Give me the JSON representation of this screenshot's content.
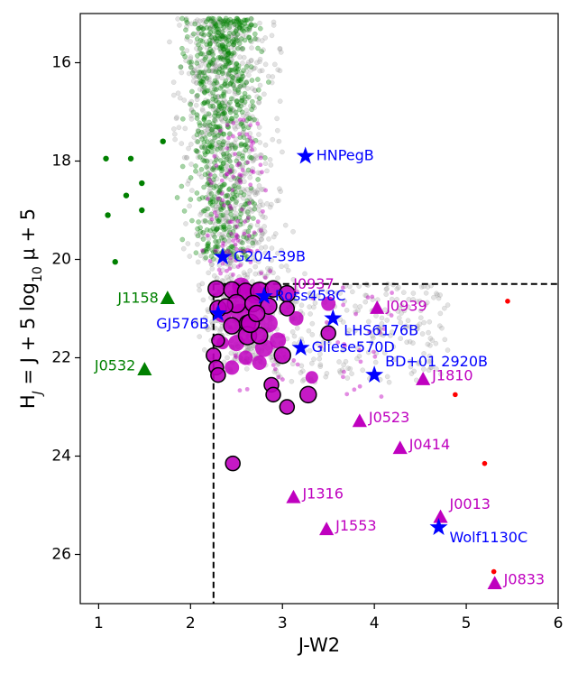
{
  "chart_data": {
    "type": "scatter",
    "title": "",
    "xlabel": "J-W2",
    "ylabel": "H_J = J + 5 log10 μ + 5",
    "xlim": [
      0.8,
      6.0
    ],
    "ylim": [
      27.0,
      15.0
    ],
    "y_inverted": true,
    "xticks": [
      1,
      2,
      3,
      4,
      5,
      6
    ],
    "yticks": [
      16,
      18,
      20,
      22,
      24,
      26
    ],
    "grid": false,
    "colors": {
      "green": "#008000",
      "blue": "#0000ff",
      "magenta": "#bf00bf",
      "red": "#ff0000",
      "gray": "#999999",
      "dark_outline": "#000000"
    },
    "selection_cuts": {
      "dashed_vertical_x": 2.25,
      "dashed_horizontal_y": 20.5,
      "vertical_from_y": 20.5,
      "vertical_to_y": 27.0,
      "horizontal_from_x": 2.25,
      "horizontal_to_x": 6.0
    },
    "field_clouds": [
      {
        "name": "gray field",
        "color": "#999999",
        "count": 1300,
        "x_range": [
          0.9,
          4.9
        ],
        "y_range": [
          15.1,
          22.5
        ]
      },
      {
        "name": "green field",
        "color": "#008000",
        "count": 650,
        "x_range": [
          1.5,
          3.6
        ],
        "y_range": [
          15.1,
          20.0
        ]
      },
      {
        "name": "magenta field",
        "color": "#bf00bf",
        "count": 170,
        "x_range": [
          1.8,
          4.4
        ],
        "y_range": [
          17.0,
          22.8
        ]
      }
    ],
    "green_dots": [
      {
        "x": 1.08,
        "y": 17.95
      },
      {
        "x": 1.35,
        "y": 17.95
      },
      {
        "x": 1.47,
        "y": 18.45
      },
      {
        "x": 1.3,
        "y": 18.7
      },
      {
        "x": 1.47,
        "y": 19.0
      },
      {
        "x": 1.1,
        "y": 19.1
      },
      {
        "x": 1.18,
        "y": 20.05
      },
      {
        "x": 1.7,
        "y": 17.6
      }
    ],
    "red_dots": [
      {
        "x": 4.88,
        "y": 22.75
      },
      {
        "x": 5.2,
        "y": 24.15
      },
      {
        "x": 5.3,
        "y": 26.35
      },
      {
        "x": 5.45,
        "y": 20.85
      }
    ],
    "candidates": [
      {
        "x": 2.28,
        "y": 20.6,
        "s": 9
      },
      {
        "x": 2.45,
        "y": 20.62,
        "s": 9
      },
      {
        "x": 2.6,
        "y": 20.65,
        "s": 9
      },
      {
        "x": 2.75,
        "y": 20.65,
        "s": 10
      },
      {
        "x": 2.9,
        "y": 20.6,
        "s": 9
      },
      {
        "x": 3.05,
        "y": 20.7,
        "s": 9
      },
      {
        "x": 2.3,
        "y": 21.0,
        "s": 9
      },
      {
        "x": 2.5,
        "y": 20.9,
        "s": 10
      },
      {
        "x": 2.68,
        "y": 20.9,
        "s": 9
      },
      {
        "x": 2.85,
        "y": 20.95,
        "s": 9
      },
      {
        "x": 3.05,
        "y": 21.0,
        "s": 8
      },
      {
        "x": 2.45,
        "y": 21.35,
        "s": 9
      },
      {
        "x": 2.62,
        "y": 21.3,
        "s": 9
      },
      {
        "x": 2.62,
        "y": 21.55,
        "s": 10
      },
      {
        "x": 2.75,
        "y": 21.55,
        "s": 9
      },
      {
        "x": 2.3,
        "y": 21.65,
        "s": 7
      },
      {
        "x": 2.25,
        "y": 21.95,
        "s": 8
      },
      {
        "x": 2.28,
        "y": 22.2,
        "s": 8
      },
      {
        "x": 2.3,
        "y": 22.35,
        "s": 8
      },
      {
        "x": 3.0,
        "y": 21.95,
        "s": 9
      },
      {
        "x": 2.88,
        "y": 22.55,
        "s": 8
      },
      {
        "x": 2.9,
        "y": 22.75,
        "s": 8
      },
      {
        "x": 3.05,
        "y": 23.0,
        "s": 8
      },
      {
        "x": 3.28,
        "y": 22.75,
        "s": 9
      },
      {
        "x": 3.5,
        "y": 21.5,
        "s": 8
      },
      {
        "x": 2.46,
        "y": 24.15,
        "s": 8
      },
      {
        "x": 2.65,
        "y": 21.3,
        "s": 10
      },
      {
        "x": 2.38,
        "y": 20.95,
        "s": 8
      },
      {
        "x": 2.72,
        "y": 21.1,
        "s": 9
      }
    ],
    "purple_filled": [
      {
        "x": 2.55,
        "y": 20.55,
        "s": 10
      },
      {
        "x": 2.7,
        "y": 20.7,
        "s": 11
      },
      {
        "x": 2.35,
        "y": 21.1,
        "s": 10
      },
      {
        "x": 2.55,
        "y": 21.1,
        "s": 11
      },
      {
        "x": 2.85,
        "y": 21.3,
        "s": 10
      },
      {
        "x": 2.5,
        "y": 21.7,
        "s": 9
      },
      {
        "x": 2.8,
        "y": 21.8,
        "s": 10
      },
      {
        "x": 2.6,
        "y": 22.0,
        "s": 8
      },
      {
        "x": 2.45,
        "y": 22.2,
        "s": 8
      },
      {
        "x": 3.5,
        "y": 20.9,
        "s": 8
      },
      {
        "x": 3.32,
        "y": 22.4,
        "s": 7
      },
      {
        "x": 2.95,
        "y": 21.65,
        "s": 9
      },
      {
        "x": 3.15,
        "y": 21.2,
        "s": 8
      },
      {
        "x": 2.35,
        "y": 21.7,
        "s": 7
      },
      {
        "x": 2.75,
        "y": 22.1,
        "s": 8
      }
    ],
    "labeled_stars": [
      {
        "name": "HNPegB",
        "x": 3.25,
        "y": 17.9
      },
      {
        "name": "G204-39B",
        "x": 2.35,
        "y": 19.95
      },
      {
        "name": "Ross458C",
        "x": 2.8,
        "y": 20.75
      },
      {
        "name": "GJ576B",
        "x": 2.3,
        "y": 21.1
      },
      {
        "name": "LHS6176B",
        "x": 3.55,
        "y": 21.2
      },
      {
        "name": "Gliese570D",
        "x": 3.2,
        "y": 21.8
      },
      {
        "name": "BD+01 2920B",
        "x": 4.0,
        "y": 22.35
      },
      {
        "name": "Wolf1130C",
        "x": 4.7,
        "y": 25.45
      }
    ],
    "labeled_magenta_triangles": [
      {
        "name": "J0939",
        "x": 4.03,
        "y": 21.0
      },
      {
        "name": "J0937",
        "x": 3.0,
        "y": 20.55
      },
      {
        "name": "J1810",
        "x": 4.53,
        "y": 22.45
      },
      {
        "name": "J0523",
        "x": 3.84,
        "y": 23.3
      },
      {
        "name": "J0414",
        "x": 4.28,
        "y": 23.85
      },
      {
        "name": "J1316",
        "x": 3.12,
        "y": 24.85
      },
      {
        "name": "J1553",
        "x": 3.48,
        "y": 25.5
      },
      {
        "name": "J0013",
        "x": 4.72,
        "y": 25.25
      },
      {
        "name": "J0833",
        "x": 5.31,
        "y": 26.6
      }
    ],
    "labeled_green_triangles": [
      {
        "name": "J1158",
        "x": 1.75,
        "y": 20.8
      },
      {
        "name": "J0532",
        "x": 1.5,
        "y": 22.25
      }
    ]
  }
}
